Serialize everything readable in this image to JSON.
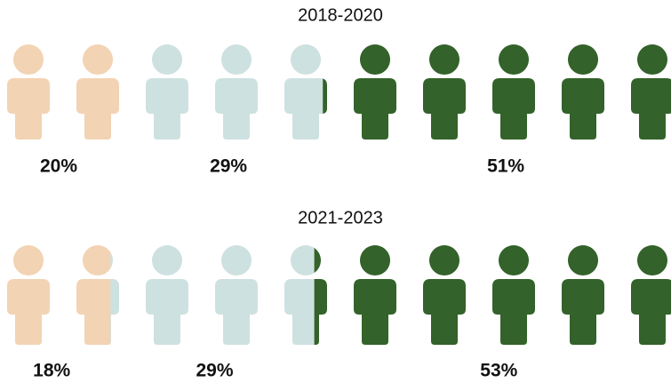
{
  "chart_data": [
    {
      "type": "pictogram",
      "title": "2018-2020",
      "values": [
        20,
        29,
        51
      ],
      "value_labels": [
        "20%",
        "29%",
        "51%"
      ],
      "colors": [
        "#f2d3b3",
        "#cde1e0",
        "#33622a"
      ]
    },
    {
      "type": "pictogram",
      "title": "2021-2023",
      "values": [
        18,
        29,
        53
      ],
      "value_labels": [
        "18%",
        "29%",
        "53%"
      ],
      "colors": [
        "#f2d3b3",
        "#cde1e0",
        "#33622a"
      ]
    }
  ]
}
